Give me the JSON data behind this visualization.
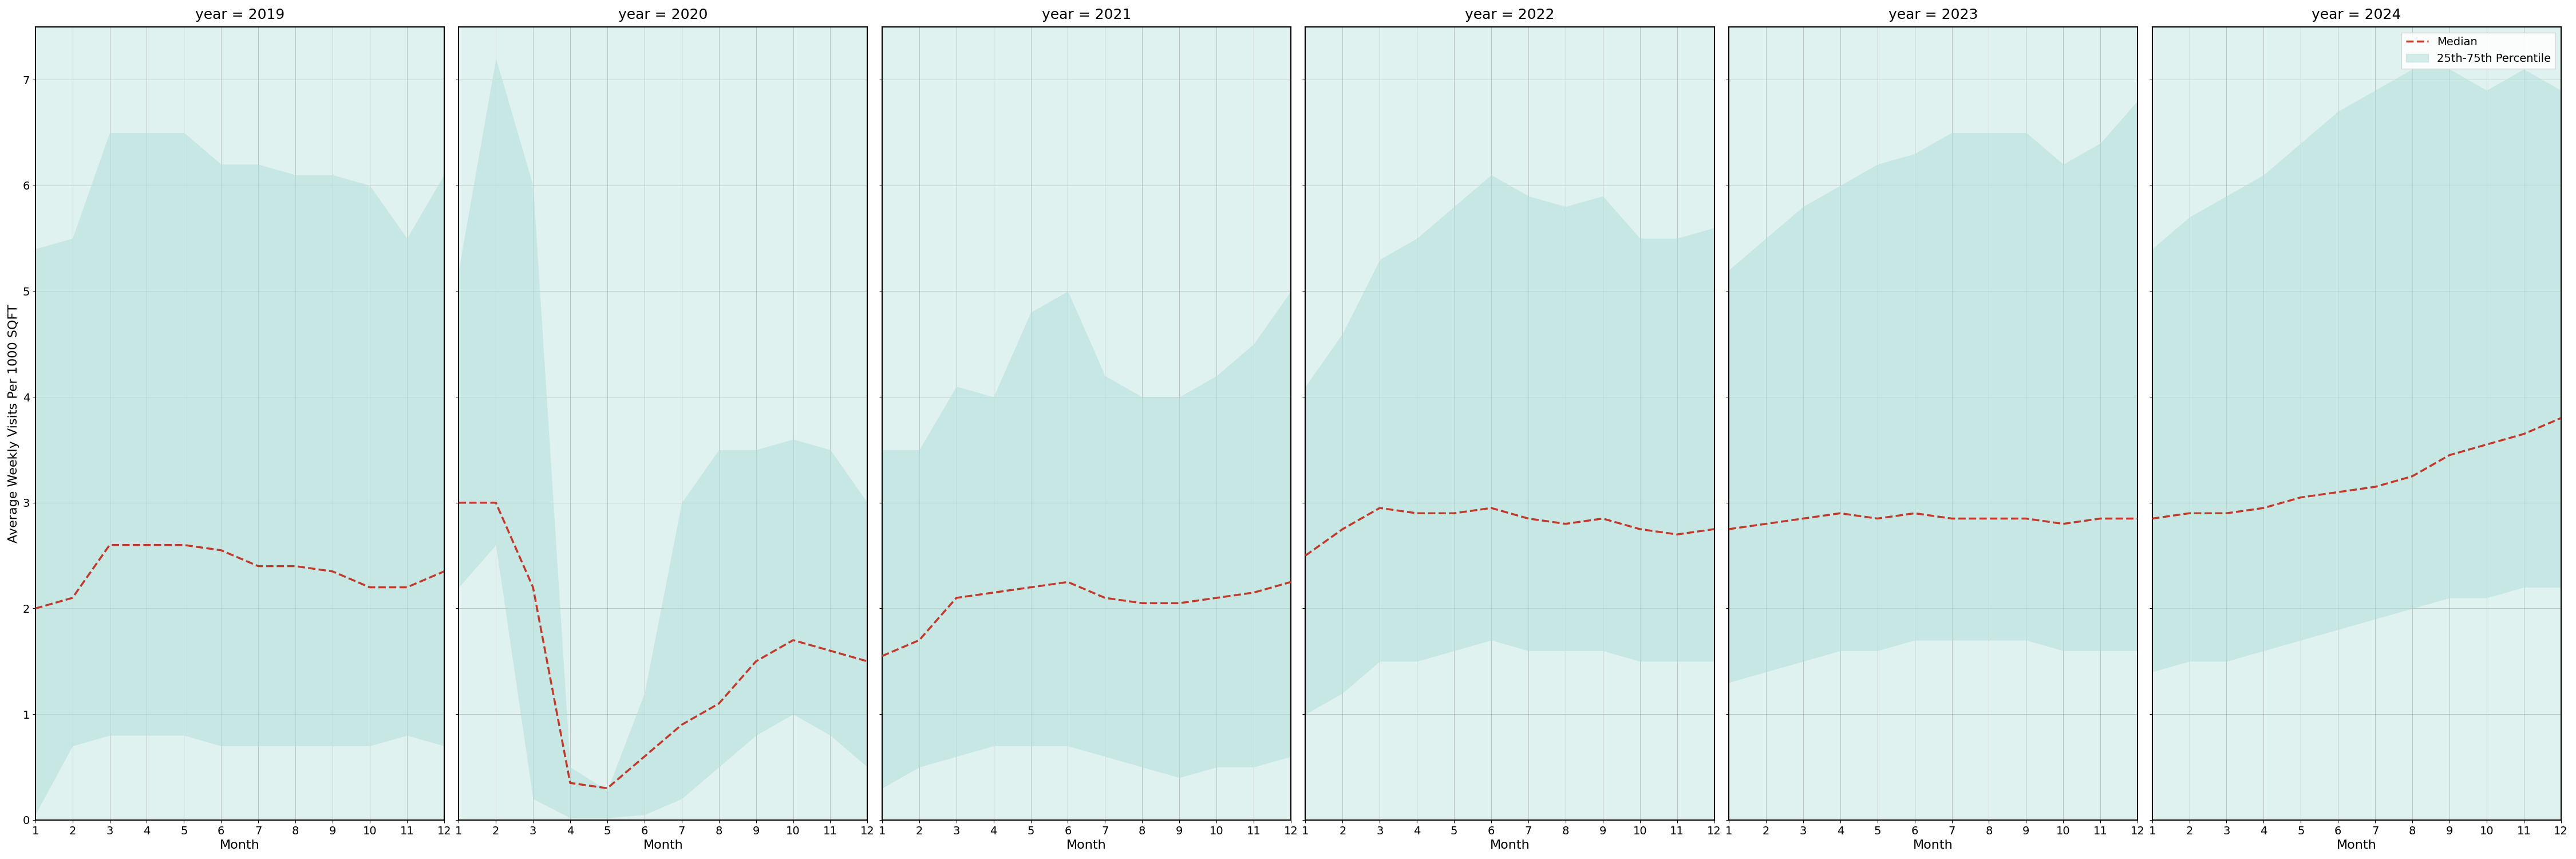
{
  "years": [
    2019,
    2020,
    2021,
    2022,
    2023,
    2024
  ],
  "months": [
    1,
    2,
    3,
    4,
    5,
    6,
    7,
    8,
    9,
    10,
    11,
    12
  ],
  "median": {
    "2019": [
      2.0,
      2.1,
      2.6,
      2.6,
      2.6,
      2.55,
      2.4,
      2.4,
      2.35,
      2.2,
      2.2,
      2.35
    ],
    "2020": [
      3.0,
      3.0,
      2.2,
      0.35,
      0.3,
      0.6,
      0.9,
      1.1,
      1.5,
      1.7,
      1.6,
      1.5
    ],
    "2021": [
      1.55,
      1.7,
      2.1,
      2.15,
      2.2,
      2.25,
      2.1,
      2.05,
      2.05,
      2.1,
      2.15,
      2.25
    ],
    "2022": [
      2.5,
      2.75,
      2.95,
      2.9,
      2.9,
      2.95,
      2.85,
      2.8,
      2.85,
      2.75,
      2.7,
      2.75
    ],
    "2023": [
      2.75,
      2.8,
      2.85,
      2.9,
      2.85,
      2.9,
      2.85,
      2.85,
      2.85,
      2.8,
      2.85,
      2.85
    ],
    "2024": [
      2.85,
      2.9,
      2.9,
      2.95,
      3.05,
      3.1,
      3.15,
      3.25,
      3.45,
      3.55,
      3.65,
      3.8
    ]
  },
  "band_top": {
    "2019": [
      5.4,
      5.5,
      6.5,
      6.5,
      6.5,
      6.2,
      6.2,
      6.1,
      6.1,
      6.0,
      5.5,
      6.1
    ],
    "2020": [
      5.2,
      7.2,
      6.0,
      0.5,
      0.28,
      1.2,
      3.0,
      3.5,
      3.5,
      3.6,
      3.5,
      3.0
    ],
    "2021": [
      3.5,
      3.5,
      4.1,
      4.0,
      4.8,
      5.0,
      4.2,
      4.0,
      4.0,
      4.2,
      4.5,
      5.0
    ],
    "2022": [
      4.1,
      4.6,
      5.3,
      5.5,
      5.8,
      6.1,
      5.9,
      5.8,
      5.9,
      5.5,
      5.5,
      5.6
    ],
    "2023": [
      5.2,
      5.5,
      5.8,
      6.0,
      6.2,
      6.3,
      6.5,
      6.5,
      6.5,
      6.2,
      6.4,
      6.8
    ],
    "2024": [
      5.4,
      5.7,
      5.9,
      6.1,
      6.4,
      6.7,
      6.9,
      7.1,
      7.1,
      6.9,
      7.1,
      6.9
    ]
  },
  "band_bottom": {
    "2019": [
      0.05,
      0.7,
      0.8,
      0.8,
      0.8,
      0.7,
      0.7,
      0.7,
      0.7,
      0.7,
      0.8,
      0.7
    ],
    "2020": [
      2.2,
      2.6,
      0.2,
      0.02,
      0.02,
      0.05,
      0.2,
      0.5,
      0.8,
      1.0,
      0.8,
      0.5
    ],
    "2021": [
      0.3,
      0.5,
      0.6,
      0.7,
      0.7,
      0.7,
      0.6,
      0.5,
      0.4,
      0.5,
      0.5,
      0.6
    ],
    "2022": [
      1.0,
      1.2,
      1.5,
      1.5,
      1.6,
      1.7,
      1.6,
      1.6,
      1.6,
      1.5,
      1.5,
      1.5
    ],
    "2023": [
      1.3,
      1.4,
      1.5,
      1.6,
      1.6,
      1.7,
      1.7,
      1.7,
      1.7,
      1.6,
      1.6,
      1.6
    ],
    "2024": [
      1.4,
      1.5,
      1.5,
      1.6,
      1.7,
      1.8,
      1.9,
      2.0,
      2.1,
      2.1,
      2.2,
      2.2
    ]
  },
  "fill_color": "#b2dfdb",
  "fill_alpha": 0.55,
  "line_color": "#c0392b",
  "line_style": "--",
  "line_width": 2.5,
  "background_color": "#e0f2ef",
  "ylim": [
    0,
    7.5
  ],
  "yticks": [
    0,
    1,
    2,
    3,
    4,
    5,
    6,
    7
  ],
  "xlabel": "Month",
  "ylabel": "Average Weekly Visits Per 1000 SQFT",
  "title_fontsize": 18,
  "label_fontsize": 16,
  "tick_fontsize": 14,
  "legend_labels": [
    "Median",
    "25th-75th Percentile"
  ],
  "figsize": [
    45,
    15
  ]
}
